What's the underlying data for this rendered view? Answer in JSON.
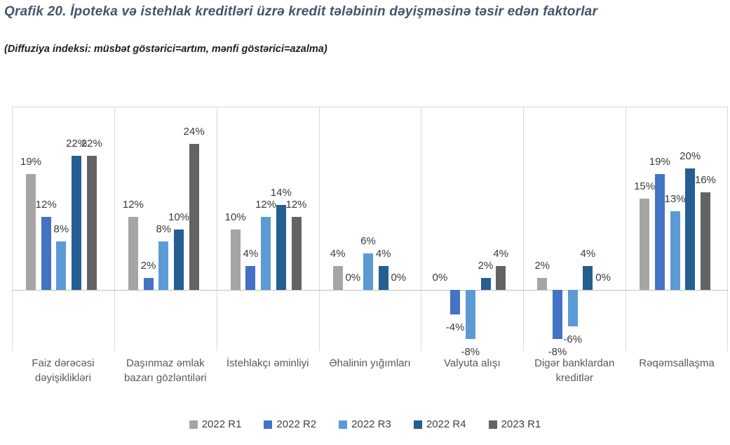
{
  "header": {
    "title": "Qrafik 20. İpoteka və istehlak kreditləri üzrə kredit tələbinin dəyişməsinə təsir edən faktorlar",
    "subtitle": "(Diffuziya indeksi: müsbət göstərici=artım, mənfi göstərici=azalma)"
  },
  "chart_data": {
    "type": "bar",
    "title": "Qrafik 20. İpoteka və istehlak kreditləri üzrə kredit tələbinin dəyişməsinə təsir edən faktorlar",
    "subtitle": "(Diffuziya indeksi: müsbət göstərici=artım, mənfi göstərici=azalma)",
    "categories": [
      "Faiz dərəcəsi dəyişiklikləri",
      "Daşınmaz əmlak bazarı gözləntiləri",
      "İstehlakçı əminliyi",
      "Əhalinin yığımları",
      "Valyuta alışı",
      "Digər banklardan kreditlər",
      "Rəqəmsallaşma"
    ],
    "series": [
      {
        "name": "2022 R1",
        "color": "#A5A5A5",
        "values": [
          19,
          12,
          10,
          4,
          0,
          2,
          15
        ]
      },
      {
        "name": "2022 R2",
        "color": "#4472C4",
        "values": [
          12,
          2,
          4,
          0,
          -4,
          -8,
          19
        ]
      },
      {
        "name": "2022 R3",
        "color": "#5B9BD5",
        "values": [
          8,
          8,
          12,
          6,
          -8,
          -6,
          13
        ]
      },
      {
        "name": "2022 R4",
        "color": "#255E91",
        "values": [
          22,
          10,
          14,
          4,
          2,
          4,
          20
        ]
      },
      {
        "name": "2023 R1",
        "color": "#636363",
        "values": [
          22,
          24,
          12,
          0,
          4,
          0,
          16
        ]
      }
    ],
    "value_suffix": "%",
    "data_labels": true,
    "ylim": [
      -10,
      30
    ],
    "xlabel": "",
    "ylabel": "",
    "grid": "vertical-category-separators",
    "legend_position": "bottom"
  },
  "colors": {
    "title_text": "#44546A",
    "subtitle_text": "#1f1f1f",
    "data_label_text": "#3a3a3a",
    "category_label_text": "#595959",
    "legend_text": "#404040",
    "gridline": "#D9D9D9",
    "zero_axis": "#BFBFBF"
  }
}
